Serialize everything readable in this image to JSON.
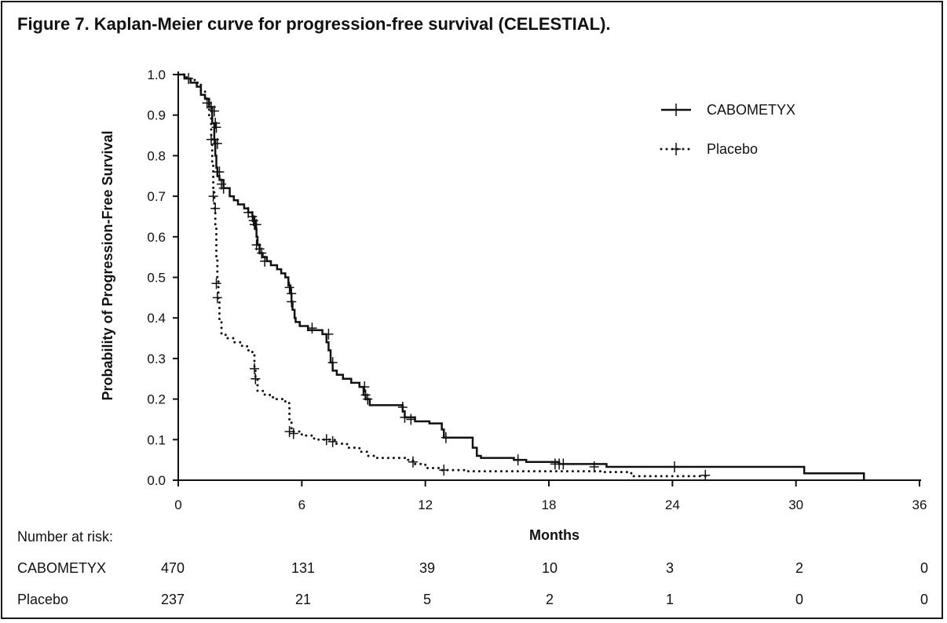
{
  "title": "Figure 7. Kaplan-Meier curve for progression-free survival (CELESTIAL).",
  "chart_data": {
    "type": "line",
    "title": "Figure 7. Kaplan-Meier curve for progression-free survival (CELESTIAL).",
    "xlabel": "Months",
    "ylabel": "Probability of Progression-Free Survival",
    "xlim": [
      0,
      36
    ],
    "ylim": [
      0,
      1.0
    ],
    "xticks": [
      "0",
      "6",
      "12",
      "18",
      "24",
      "30",
      "36"
    ],
    "xtick_values": [
      0,
      6,
      12,
      18,
      24,
      30,
      36
    ],
    "yticks": [
      "0.0",
      "0.1",
      "0.2",
      "0.3",
      "0.4",
      "0.5",
      "0.6",
      "0.7",
      "0.8",
      "0.9",
      "1.0"
    ],
    "ytick_values": [
      0,
      0.1,
      0.2,
      0.3,
      0.4,
      0.5,
      0.6,
      0.7,
      0.8,
      0.9,
      1.0
    ],
    "grid": false,
    "legend_position": "top-right",
    "series": [
      {
        "name": "CABOMETYX",
        "style": "solid",
        "color": "#111111",
        "steps": [
          [
            0,
            1.0
          ],
          [
            0.3,
            0.99
          ],
          [
            0.6,
            0.98
          ],
          [
            0.9,
            0.97
          ],
          [
            1.1,
            0.95
          ],
          [
            1.3,
            0.94
          ],
          [
            1.5,
            0.92
          ],
          [
            1.65,
            0.88
          ],
          [
            1.75,
            0.84
          ],
          [
            1.8,
            0.8
          ],
          [
            1.85,
            0.77
          ],
          [
            1.9,
            0.75
          ],
          [
            2.0,
            0.74
          ],
          [
            2.2,
            0.72
          ],
          [
            2.5,
            0.7
          ],
          [
            2.7,
            0.69
          ],
          [
            2.9,
            0.68
          ],
          [
            3.2,
            0.67
          ],
          [
            3.4,
            0.66
          ],
          [
            3.6,
            0.65
          ],
          [
            3.7,
            0.64
          ],
          [
            3.75,
            0.62
          ],
          [
            3.8,
            0.6
          ],
          [
            3.85,
            0.58
          ],
          [
            3.95,
            0.56
          ],
          [
            4.1,
            0.55
          ],
          [
            4.3,
            0.54
          ],
          [
            4.5,
            0.53
          ],
          [
            4.8,
            0.52
          ],
          [
            5.0,
            0.51
          ],
          [
            5.2,
            0.5
          ],
          [
            5.35,
            0.48
          ],
          [
            5.45,
            0.46
          ],
          [
            5.5,
            0.44
          ],
          [
            5.55,
            0.42
          ],
          [
            5.65,
            0.4
          ],
          [
            5.7,
            0.39
          ],
          [
            5.9,
            0.38
          ],
          [
            6.3,
            0.37
          ],
          [
            7.0,
            0.36
          ],
          [
            7.2,
            0.34
          ],
          [
            7.3,
            0.32
          ],
          [
            7.4,
            0.29
          ],
          [
            7.5,
            0.27
          ],
          [
            7.7,
            0.26
          ],
          [
            8.0,
            0.25
          ],
          [
            8.4,
            0.24
          ],
          [
            8.8,
            0.23
          ],
          [
            9.0,
            0.21
          ],
          [
            9.1,
            0.2
          ],
          [
            9.3,
            0.185
          ],
          [
            10.9,
            0.17
          ],
          [
            11.0,
            0.155
          ],
          [
            11.5,
            0.145
          ],
          [
            12.2,
            0.14
          ],
          [
            12.8,
            0.125
          ],
          [
            12.9,
            0.105
          ],
          [
            14.3,
            0.08
          ],
          [
            14.5,
            0.06
          ],
          [
            14.7,
            0.055
          ],
          [
            16.3,
            0.05
          ],
          [
            16.9,
            0.045
          ],
          [
            18.5,
            0.04
          ],
          [
            20.8,
            0.033
          ],
          [
            30.4,
            0.017
          ],
          [
            33.3,
            0.0
          ]
        ],
        "end_x": 33.3,
        "censor": [
          [
            0.5,
            0.99
          ],
          [
            1.4,
            0.93
          ],
          [
            1.6,
            0.92
          ],
          [
            1.75,
            0.91
          ],
          [
            1.8,
            0.88
          ],
          [
            1.85,
            0.87
          ],
          [
            1.9,
            0.83
          ],
          [
            1.75,
            0.84
          ],
          [
            1.9,
            0.76
          ],
          [
            2.0,
            0.76
          ],
          [
            2.1,
            0.73
          ],
          [
            2.2,
            0.72
          ],
          [
            3.4,
            0.66
          ],
          [
            3.6,
            0.65
          ],
          [
            3.65,
            0.64
          ],
          [
            3.7,
            0.63
          ],
          [
            3.8,
            0.63
          ],
          [
            3.8,
            0.58
          ],
          [
            3.95,
            0.57
          ],
          [
            4.05,
            0.56
          ],
          [
            4.2,
            0.54
          ],
          [
            5.4,
            0.475
          ],
          [
            5.5,
            0.46
          ],
          [
            5.5,
            0.44
          ],
          [
            6.5,
            0.375
          ],
          [
            7.3,
            0.36
          ],
          [
            7.5,
            0.29
          ],
          [
            9.05,
            0.23
          ],
          [
            9.1,
            0.21
          ],
          [
            9.2,
            0.2
          ],
          [
            10.9,
            0.18
          ],
          [
            11.0,
            0.155
          ],
          [
            11.3,
            0.15
          ],
          [
            13.0,
            0.105
          ],
          [
            16.5,
            0.05
          ],
          [
            18.3,
            0.04
          ],
          [
            18.5,
            0.04
          ],
          [
            18.7,
            0.04
          ],
          [
            20.2,
            0.033
          ],
          [
            24.1,
            0.033
          ]
        ]
      },
      {
        "name": "Placebo",
        "style": "dotted",
        "color": "#111111",
        "steps": [
          [
            0,
            1.0
          ],
          [
            0.4,
            0.99
          ],
          [
            0.8,
            0.98
          ],
          [
            1.1,
            0.96
          ],
          [
            1.3,
            0.94
          ],
          [
            1.5,
            0.9
          ],
          [
            1.6,
            0.85
          ],
          [
            1.65,
            0.78
          ],
          [
            1.7,
            0.72
          ],
          [
            1.75,
            0.67
          ],
          [
            1.8,
            0.62
          ],
          [
            1.85,
            0.55
          ],
          [
            1.9,
            0.49
          ],
          [
            1.95,
            0.44
          ],
          [
            2.0,
            0.39
          ],
          [
            2.1,
            0.36
          ],
          [
            2.3,
            0.35
          ],
          [
            2.7,
            0.34
          ],
          [
            3.1,
            0.33
          ],
          [
            3.4,
            0.32
          ],
          [
            3.6,
            0.31
          ],
          [
            3.7,
            0.28
          ],
          [
            3.75,
            0.25
          ],
          [
            3.85,
            0.22
          ],
          [
            4.2,
            0.21
          ],
          [
            4.6,
            0.2
          ],
          [
            5.2,
            0.19
          ],
          [
            5.4,
            0.15
          ],
          [
            5.5,
            0.12
          ],
          [
            6.0,
            0.11
          ],
          [
            6.6,
            0.1
          ],
          [
            7.6,
            0.09
          ],
          [
            8.2,
            0.08
          ],
          [
            8.8,
            0.07
          ],
          [
            9.2,
            0.06
          ],
          [
            9.6,
            0.055
          ],
          [
            11.0,
            0.05
          ],
          [
            11.4,
            0.04
          ],
          [
            12.0,
            0.03
          ],
          [
            12.8,
            0.025
          ],
          [
            14.0,
            0.022
          ],
          [
            20.5,
            0.02
          ],
          [
            22.0,
            0.01
          ]
        ],
        "end_x": 25.6,
        "censor": [
          [
            1.4,
            0.93
          ],
          [
            1.6,
            0.84
          ],
          [
            1.7,
            0.7
          ],
          [
            1.8,
            0.67
          ],
          [
            1.85,
            0.485
          ],
          [
            1.9,
            0.45
          ],
          [
            3.7,
            0.275
          ],
          [
            3.75,
            0.25
          ],
          [
            5.4,
            0.12
          ],
          [
            5.6,
            0.115
          ],
          [
            7.2,
            0.1
          ],
          [
            7.5,
            0.095
          ],
          [
            11.4,
            0.045
          ],
          [
            12.9,
            0.025
          ],
          [
            25.6,
            0.012
          ]
        ]
      }
    ]
  },
  "risk_table": {
    "header": "Number at risk:",
    "rows": [
      {
        "label": "CABOMETYX",
        "values": [
          "470",
          "131",
          "39",
          "10",
          "3",
          "2",
          "0"
        ]
      },
      {
        "label": "Placebo",
        "values": [
          "237",
          "21",
          "5",
          "2",
          "1",
          "0",
          "0"
        ]
      }
    ]
  }
}
